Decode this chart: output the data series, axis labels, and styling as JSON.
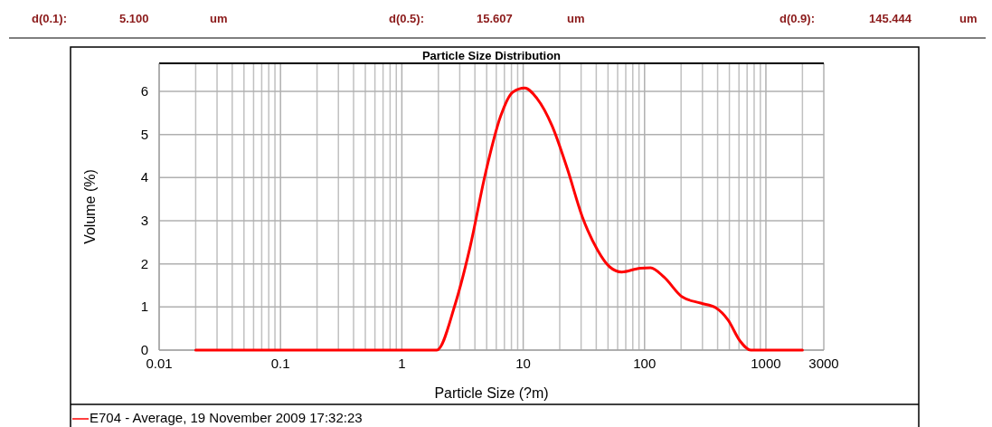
{
  "chart_data": {
    "type": "line",
    "title": "Particle Size Distribution",
    "xlabel": "Particle Size (?m)",
    "ylabel": "Volume (%)",
    "annotations": [
      "d(0.1):",
      "5.100",
      "um",
      "d(0.5):",
      "15.607",
      "um",
      "d(0.9):",
      "145.444",
      "um"
    ],
    "log": "x",
    "xlim": [
      0.01,
      3000
    ],
    "xticks": [
      0.01,
      0.1,
      1,
      10,
      100,
      1000,
      3000
    ],
    "ylim": [
      0,
      6.65
    ],
    "yticks": [
      0,
      1,
      2,
      3,
      4,
      5,
      6
    ],
    "grid": true,
    "legend": "bottom",
    "series": [
      {
        "name": "E704 - Average, 19 November 2009 17:32:23",
        "color": "#ff0000",
        "x": [
          0.02,
          0.5,
          1.94,
          2.74,
          3.65,
          4.87,
          6.49,
          8.18,
          10.3,
          12.96,
          17.3,
          23.0,
          30.7,
          41.0,
          51.6,
          64.9,
          91.7,
          112,
          145,
          205,
          290,
          387,
          487,
          613,
          750,
          2000
        ],
        "values": [
          0,
          0,
          0,
          1.05,
          2.39,
          4.08,
          5.41,
          5.98,
          6.08,
          5.84,
          5.2,
          4.22,
          3.09,
          2.32,
          1.93,
          1.81,
          1.9,
          1.91,
          1.69,
          1.23,
          1.09,
          0.98,
          0.7,
          0.21,
          0,
          0
        ]
      }
    ]
  }
}
